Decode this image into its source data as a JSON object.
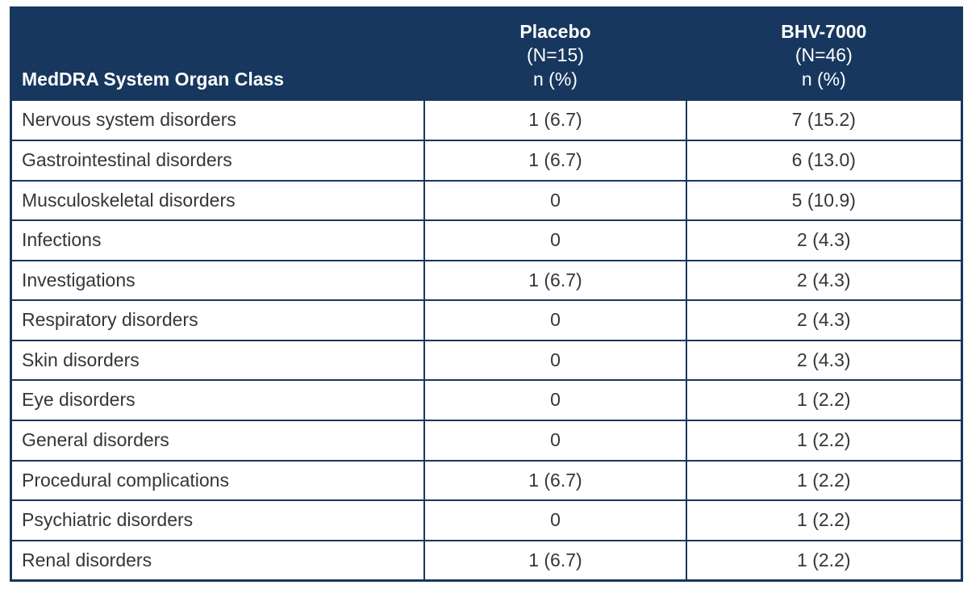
{
  "colors": {
    "header_bg": "#17375E",
    "border": "#17375E",
    "header_text": "#FFFFFF",
    "body_text": "#363636",
    "row_bg": "#FFFFFF"
  },
  "chart_data": {
    "type": "table",
    "title": "",
    "columns": [
      "MedDRA System Organ Class",
      "Placebo (N=15) n (%)",
      "BHV-7000 (N=46) n (%)"
    ],
    "header": {
      "organ_class": "MedDRA System Organ Class",
      "placebo": {
        "name": "Placebo",
        "n": "(N=15)",
        "unit": "n (%)"
      },
      "bhv7000": {
        "name": "BHV-7000",
        "n": "(N=46)",
        "unit": "n (%)"
      }
    },
    "rows": [
      {
        "organ_class": "Nervous system disorders",
        "placebo": "1 (6.7)",
        "bhv7000": "7 (15.2)"
      },
      {
        "organ_class": "Gastrointestinal disorders",
        "placebo": "1 (6.7)",
        "bhv7000": "6 (13.0)"
      },
      {
        "organ_class": "Musculoskeletal disorders",
        "placebo": "0",
        "bhv7000": "5 (10.9)"
      },
      {
        "organ_class": "Infections",
        "placebo": "0",
        "bhv7000": "2 (4.3)"
      },
      {
        "organ_class": "Investigations",
        "placebo": "1 (6.7)",
        "bhv7000": "2 (4.3)"
      },
      {
        "organ_class": "Respiratory disorders",
        "placebo": "0",
        "bhv7000": "2 (4.3)"
      },
      {
        "organ_class": "Skin disorders",
        "placebo": "0",
        "bhv7000": "2 (4.3)"
      },
      {
        "organ_class": "Eye disorders",
        "placebo": "0",
        "bhv7000": "1 (2.2)"
      },
      {
        "organ_class": "General disorders",
        "placebo": "0",
        "bhv7000": "1 (2.2)"
      },
      {
        "organ_class": "Procedural complications",
        "placebo": "1 (6.7)",
        "bhv7000": "1 (2.2)"
      },
      {
        "organ_class": "Psychiatric disorders",
        "placebo": "0",
        "bhv7000": "1 (2.2)"
      },
      {
        "organ_class": "Renal disorders",
        "placebo": "1 (6.7)",
        "bhv7000": "1 (2.2)"
      }
    ]
  }
}
